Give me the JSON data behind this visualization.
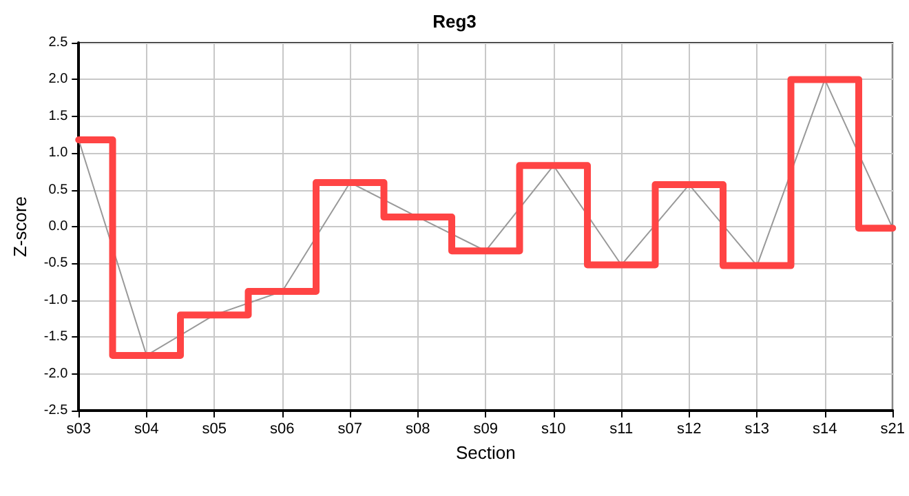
{
  "chart_data": {
    "type": "line",
    "title": "Reg3",
    "xlabel": "Section",
    "ylabel": "Z-score",
    "categories": [
      "s03",
      "s04",
      "s05",
      "s06",
      "s07",
      "s08",
      "s09",
      "s10",
      "s11",
      "s12",
      "s13",
      "s14",
      "s21"
    ],
    "series": [
      {
        "type": "step",
        "color": "#ff4444",
        "values": [
          1.18,
          -1.75,
          -1.2,
          -0.88,
          0.6,
          0.13,
          -0.33,
          0.83,
          -0.52,
          0.57,
          -0.53,
          2.0,
          -0.02
        ]
      },
      {
        "color": "#999999",
        "values": [
          1.18,
          -1.75,
          -1.2,
          -0.88,
          0.6,
          0.13,
          -0.33,
          0.83,
          -0.52,
          0.57,
          -0.53,
          2.0,
          -0.02
        ]
      }
    ],
    "ylim": [
      -2.5,
      2.5
    ],
    "yticks": [
      -2.5,
      {
        "value": -2,
        "label": "-2.0"
      },
      -1.5,
      {
        "value": -1,
        "label": "-1.0"
      },
      -0.5,
      {
        "value": 0,
        "label": "0.0"
      },
      0.5,
      {
        "value": 1,
        "label": "1.0"
      },
      1.5,
      {
        "value": 2,
        "label": "2.0"
      },
      2.5
    ],
    "grid": true,
    "marker": "none",
    "line_style": "solid"
  }
}
